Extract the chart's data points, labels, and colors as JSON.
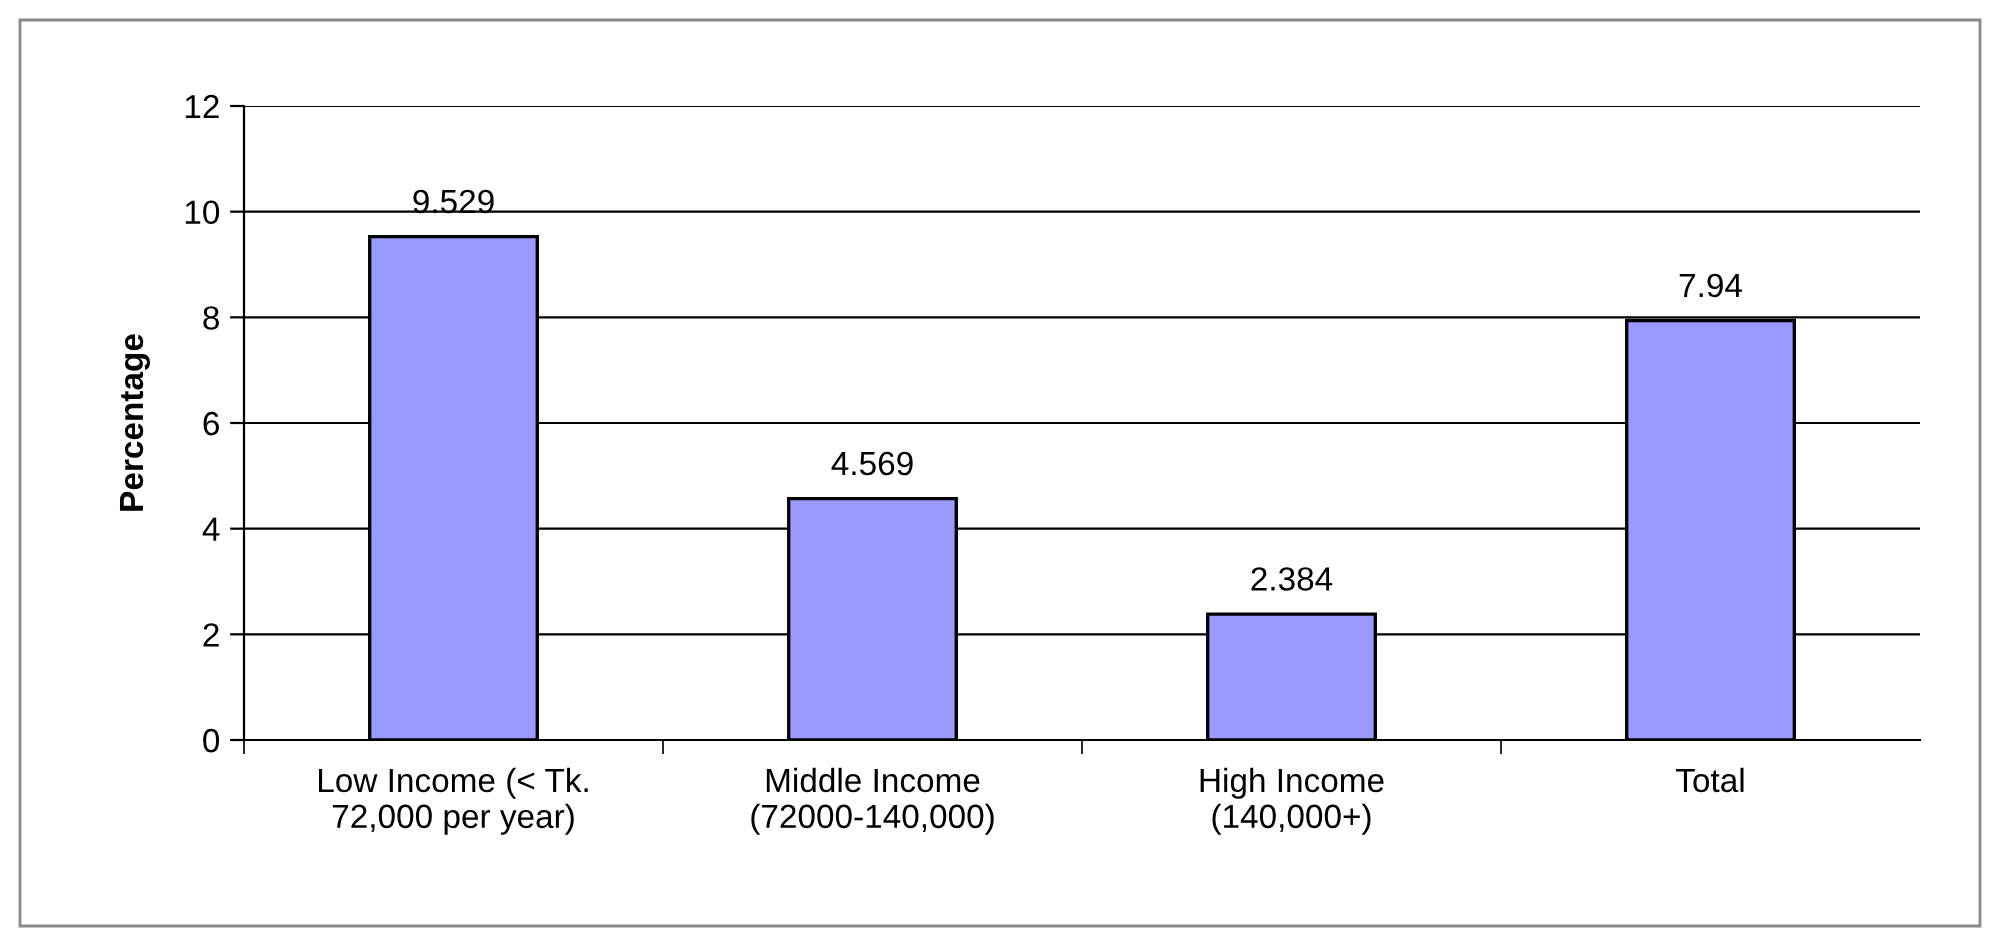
{
  "chart_data": {
    "type": "bar",
    "categories": [
      "Low Income (< Tk.\n72,000 per year)",
      "Middle Income\n(72000-140,000)",
      "High Income\n(140,000+)",
      "Total"
    ],
    "values": [
      9.529,
      4.569,
      2.384,
      7.94
    ],
    "color": "#9999ff",
    "ylabel": "Percentage",
    "ylim": [
      0,
      12
    ],
    "yticks": [
      0,
      2,
      4,
      6,
      8,
      10,
      12
    ],
    "grid": "y",
    "data_labels": true
  }
}
